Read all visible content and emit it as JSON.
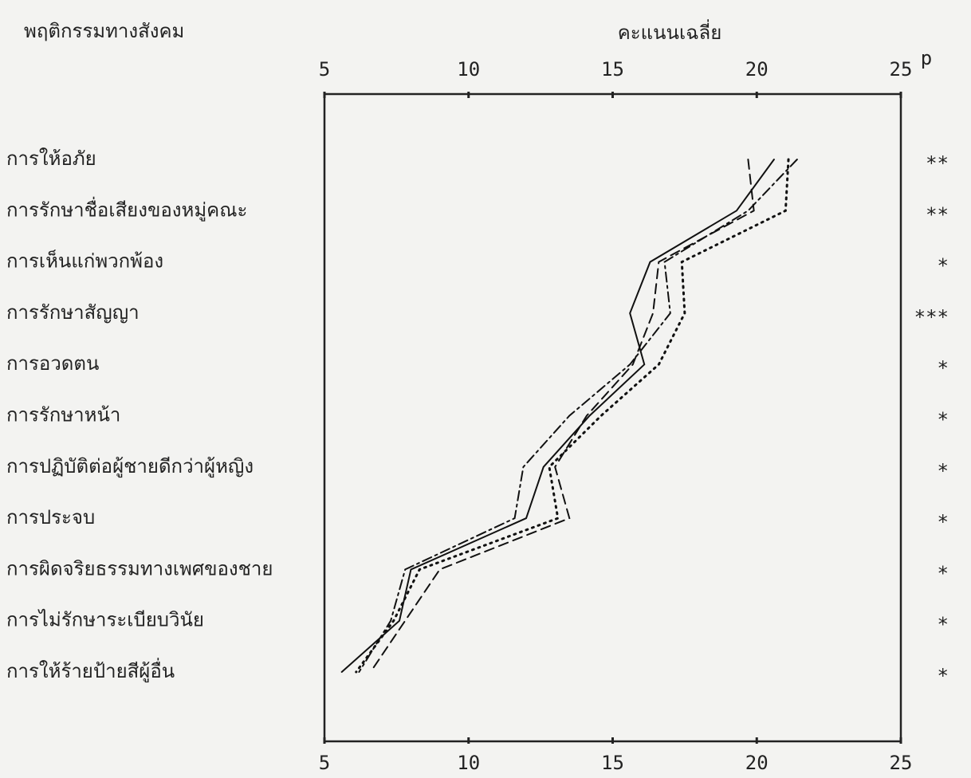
{
  "chart_data": {
    "type": "line",
    "orientation": "horizontal",
    "y_label": "พฤติกรรมทางสังคม",
    "x_label": "คะแนนเฉลี่ย",
    "p_header": "p",
    "categories": [
      "การให้อภัย",
      "การรักษาชื่อเสียงของหมู่คณะ",
      "การเห็นแก่พวกพ้อง",
      "การรักษาสัญญา",
      "การอวดตน",
      "การรักษาหน้า",
      "การปฏิบัติต่อผู้ชายดีกว่าผู้หญิง",
      "การประจบ",
      "การผิดจริยธรรมทางเพศของชาย",
      "การไม่รักษาระเบียบวินัย",
      "การให้ร้ายป้ายสีผู้อื่น"
    ],
    "p_values": [
      "**",
      "**",
      "*",
      "***",
      "*",
      "*",
      "*",
      "*",
      "*",
      "*",
      "*"
    ],
    "xlim": [
      5,
      25
    ],
    "xticks": [
      5,
      10,
      15,
      20,
      25
    ],
    "series": [
      {
        "color": "#111111",
        "style": "solid",
        "values": [
          20.6,
          19.3,
          16.3,
          15.6,
          16.1,
          14.2,
          12.6,
          12.0,
          8.0,
          7.6,
          5.6
        ]
      },
      {
        "color": "#111111",
        "style": "dashed",
        "values": [
          19.7,
          19.9,
          16.6,
          16.4,
          15.7,
          14.1,
          13.0,
          13.5,
          9.0,
          7.8,
          6.6
        ]
      },
      {
        "color": "#111111",
        "style": "dotted",
        "values": [
          21.1,
          21.0,
          17.4,
          17.5,
          16.6,
          14.6,
          12.8,
          13.1,
          8.3,
          7.4,
          6.1
        ]
      },
      {
        "color": "#111111",
        "style": "dashdot",
        "values": [
          21.4,
          19.7,
          16.8,
          17.0,
          15.6,
          13.5,
          11.9,
          11.6,
          7.8,
          7.3,
          6.2
        ]
      }
    ]
  }
}
